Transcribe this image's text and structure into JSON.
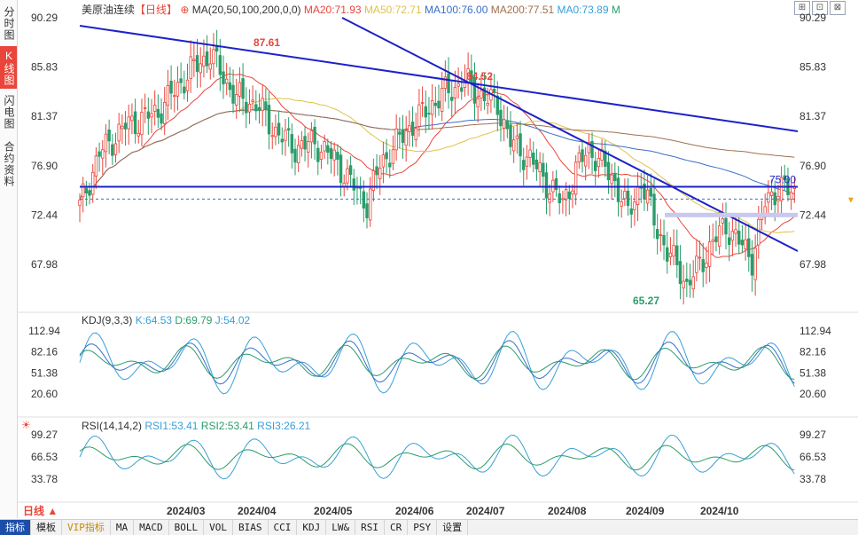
{
  "left_tabs": [
    "分时图",
    "K线图",
    "闪电图",
    "合约资料"
  ],
  "legend": {
    "name": "美原油连续",
    "period": "【日线】",
    "plus": "⊕",
    "ma_label": "MA(20,50,100,200,0,0)",
    "ma20": "MA20:71.93",
    "ma50": "MA50:72.71",
    "ma100": "MA100:76.00",
    "ma200": "MA200:77.51",
    "ma0": "MA0:73.89",
    "m": "M"
  },
  "kdj_legend": {
    "label": "KDJ(9,3,3)",
    "k": "K:64.53",
    "d": "D:69.79",
    "j": "J:54.02"
  },
  "rsi_legend": {
    "label": "RSI(14,14,2)",
    "r1": "RSI1:53.41",
    "r2": "RSI2:53.41",
    "r3": "RSI3:26.21"
  },
  "tools": [
    "⊞",
    "⊡",
    "⊠"
  ],
  "period_button": "日线 ▲",
  "bottom_tabs": [
    "指标",
    "模板",
    "VIP指标",
    "MA",
    "MACD",
    "BOLL",
    "VOL",
    "BIAS",
    "CCI",
    "KDJ",
    "LW&",
    "RSI",
    "CR",
    "PSY",
    "设置"
  ],
  "colors": {
    "up": "#e9453a",
    "down": "#2a9d6a",
    "ma20": "#e9453a",
    "ma50": "#e0c24a",
    "ma100": "#3a6fc8",
    "ma200": "#a07050",
    "ma0": "#37a0d8",
    "trend": "#1c22c8"
  },
  "chart_data": {
    "type": "candlestick",
    "price_ticks": [
      90.29,
      85.83,
      81.37,
      76.9,
      72.44,
      67.98
    ],
    "kdj_ticks": [
      112.94,
      82.16,
      51.38,
      20.6
    ],
    "rsi_ticks": [
      99.27,
      66.53,
      33.78
    ],
    "x_labels": [
      "2024/03",
      "2024/04",
      "2024/05",
      "2024/06",
      "2024/07",
      "2024/08",
      "2024/09",
      "2024/10"
    ],
    "annotations": {
      "high1": "87.61",
      "high2": "84.52",
      "low": "65.27",
      "hline": "75.00"
    },
    "anchors": [
      [
        0,
        73.2
      ],
      [
        6,
        78.0
      ],
      [
        14,
        80.5
      ],
      [
        24,
        81.8
      ],
      [
        34,
        85.5
      ],
      [
        40,
        87.0
      ],
      [
        48,
        83.0
      ],
      [
        54,
        82.5
      ],
      [
        60,
        80.0
      ],
      [
        66,
        78.5
      ],
      [
        72,
        79.0
      ],
      [
        78,
        77.5
      ],
      [
        84,
        75.0
      ],
      [
        88,
        73.5
      ],
      [
        92,
        77.0
      ],
      [
        100,
        80.0
      ],
      [
        108,
        82.5
      ],
      [
        112,
        83.5
      ],
      [
        118,
        84.5
      ],
      [
        124,
        83.0
      ],
      [
        128,
        82.5
      ],
      [
        132,
        79.0
      ],
      [
        138,
        77.5
      ],
      [
        144,
        75.0
      ],
      [
        148,
        73.5
      ],
      [
        152,
        76.5
      ],
      [
        156,
        78.5
      ],
      [
        160,
        77.0
      ],
      [
        164,
        75.5
      ],
      [
        168,
        72.5
      ],
      [
        172,
        75.5
      ],
      [
        176,
        72.0
      ],
      [
        180,
        69.0
      ],
      [
        184,
        67.5
      ],
      [
        186,
        66.0
      ],
      [
        190,
        68.0
      ],
      [
        194,
        70.0
      ],
      [
        198,
        71.5
      ],
      [
        202,
        70.0
      ],
      [
        206,
        68.5
      ],
      [
        210,
        73.5
      ],
      [
        214,
        75.0
      ],
      [
        218,
        74.5
      ]
    ]
  }
}
